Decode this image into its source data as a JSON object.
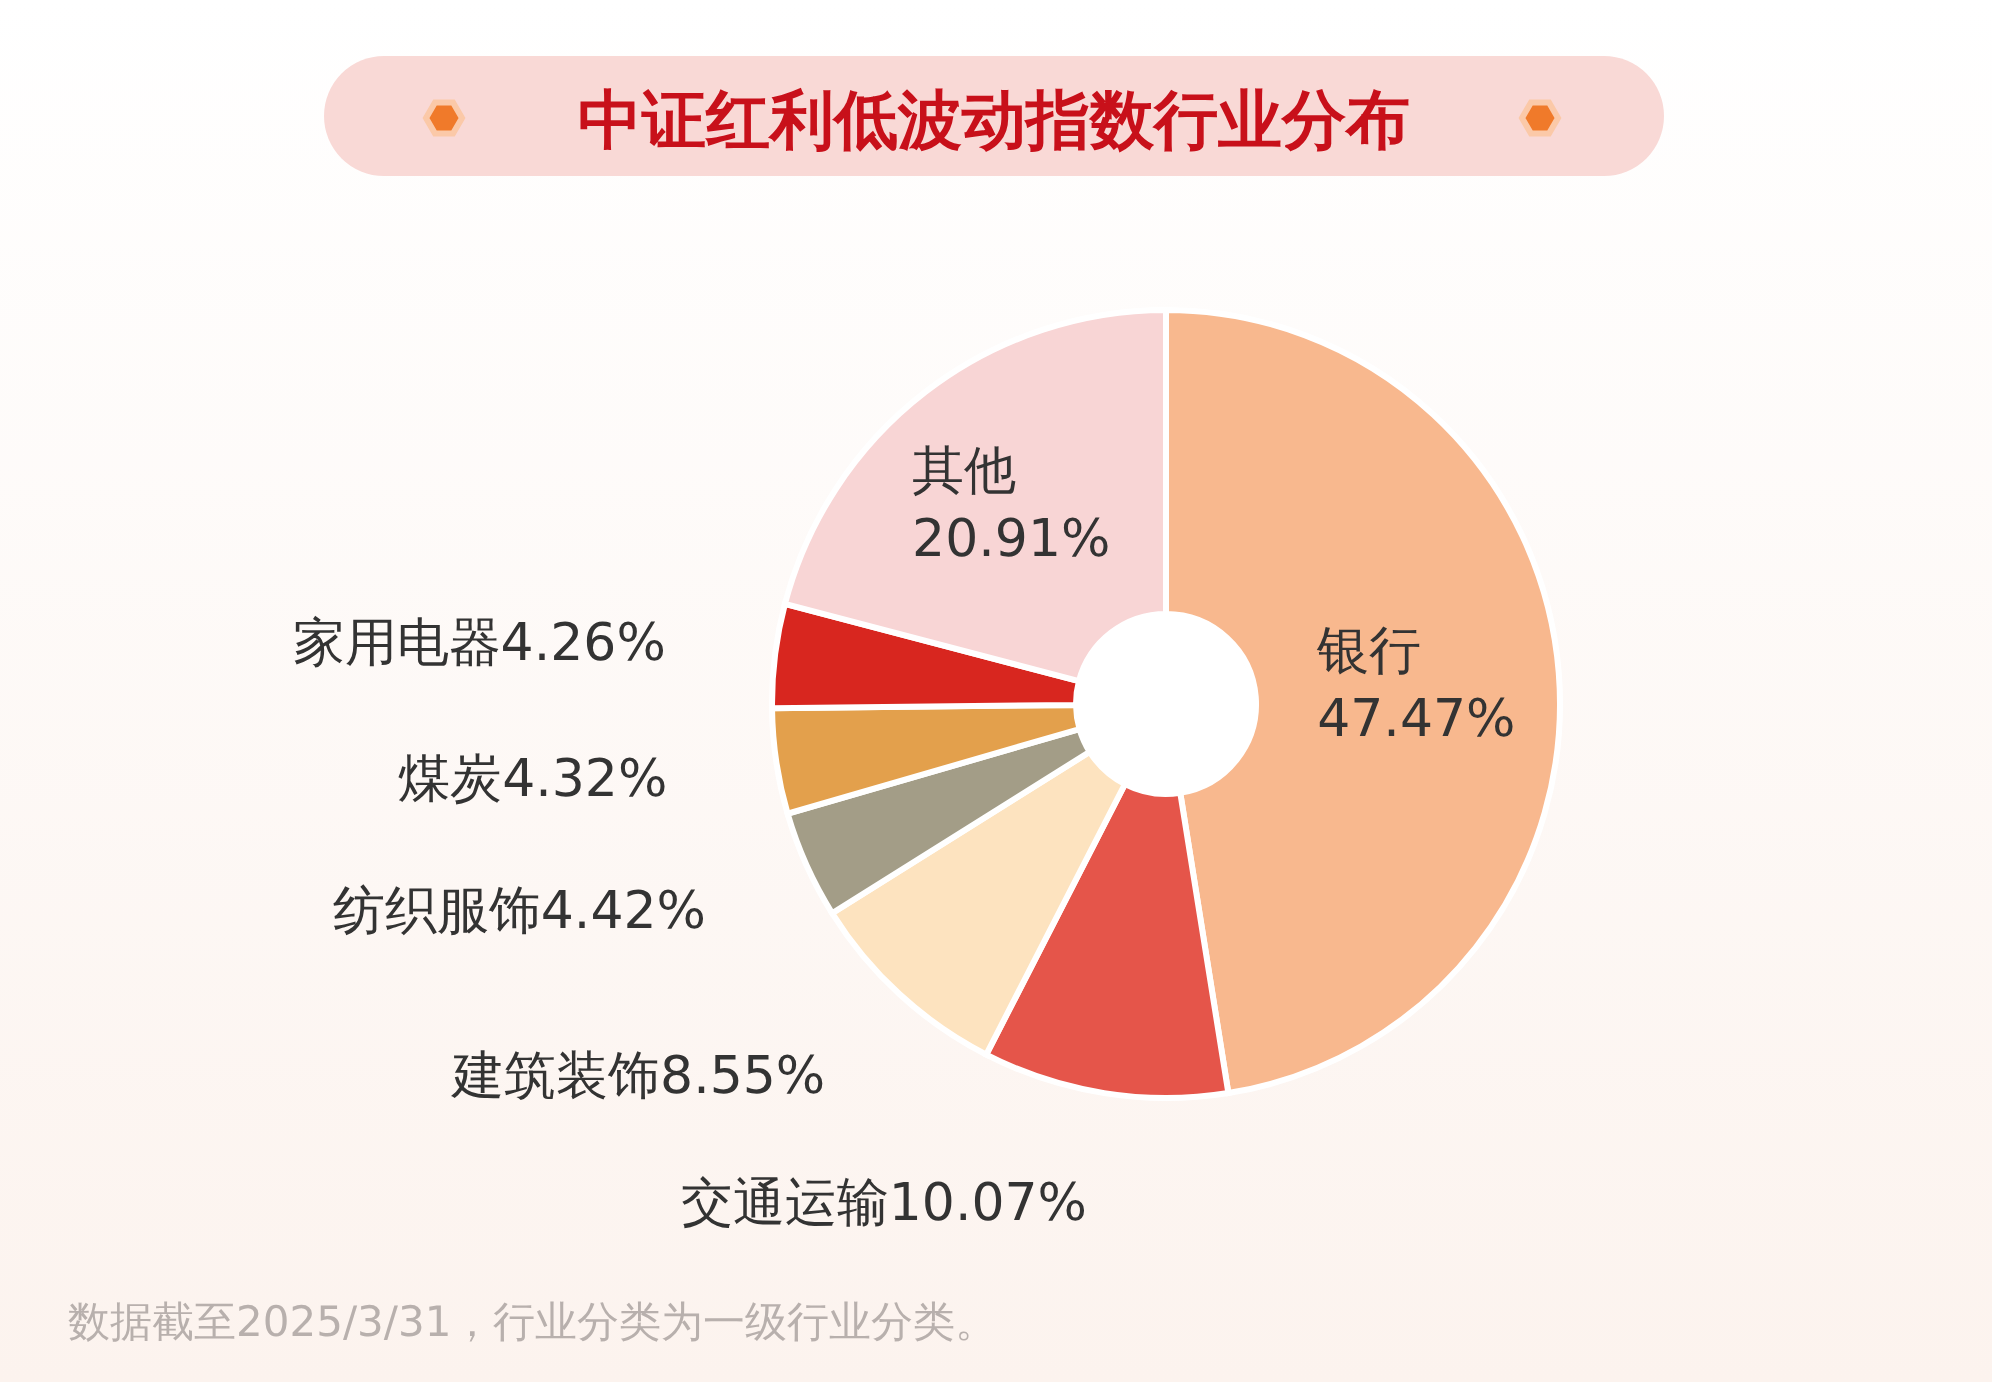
{
  "chart_data": {
    "type": "donut",
    "title": "中证红利低波动指数行业分布",
    "categories": [
      "银行",
      "交通运输",
      "建筑装饰",
      "纺织服饰",
      "煤炭",
      "家用电器",
      "其他"
    ],
    "values": [
      47.47,
      10.07,
      8.55,
      4.42,
      4.32,
      4.26,
      20.91
    ],
    "value_labels": [
      "47.47%",
      "10.07%",
      "8.55%",
      "4.42%",
      "4.32%",
      "4.26%",
      "20.91%"
    ],
    "colors": [
      "#f8b88e",
      "#e5554a",
      "#fde3bf",
      "#a39d87",
      "#e3a04c",
      "#d8261f",
      "#f8d5d5"
    ],
    "annotations": [
      "数据截至2025/3/31，行业分类为一级行业分类。"
    ]
  }
}
